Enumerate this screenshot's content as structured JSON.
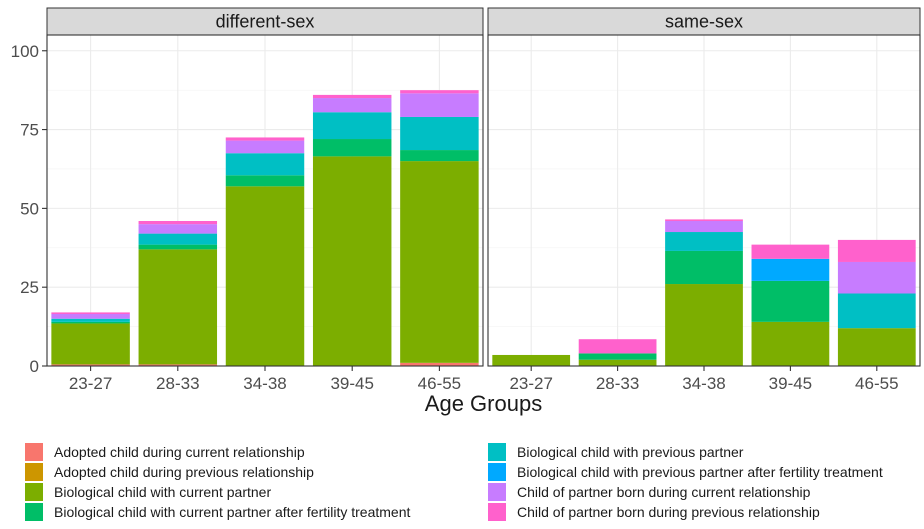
{
  "chart_data": {
    "type": "bar",
    "stacked": true,
    "facets": [
      "different-sex",
      "same-sex"
    ],
    "categories": [
      "23-27",
      "28-33",
      "34-38",
      "39-45",
      "46-55"
    ],
    "xlabel": "Age Groups",
    "ylabel": "",
    "ylim": [
      0,
      105
    ],
    "yticks": [
      0,
      25,
      50,
      75,
      100
    ],
    "grid": true,
    "legend_position": "bottom",
    "series": [
      {
        "name": "Adopted child during current relationship",
        "color": "#F8766D",
        "values": {
          "different-sex": [
            0.5,
            0.5,
            0,
            0,
            1
          ],
          "same-sex": [
            0,
            0,
            0,
            0,
            0
          ]
        }
      },
      {
        "name": "Adopted child during previous relationship",
        "color": "#CD9600",
        "values": {
          "different-sex": [
            0,
            0,
            0,
            0,
            0
          ],
          "same-sex": [
            0,
            0,
            0,
            0,
            0
          ]
        }
      },
      {
        "name": "Biological child with current partner",
        "color": "#7CAE00",
        "values": {
          "different-sex": [
            13,
            36.5,
            57,
            66.5,
            64
          ],
          "same-sex": [
            3.5,
            2,
            26,
            14,
            12
          ]
        }
      },
      {
        "name": "Biological child with current partner after fertility treatment",
        "color": "#00BE67",
        "values": {
          "different-sex": [
            0.5,
            1.5,
            3.5,
            5.5,
            3.5
          ],
          "same-sex": [
            0,
            2,
            10.5,
            13,
            0
          ]
        }
      },
      {
        "name": "Biological child with previous partner",
        "color": "#00BFC4",
        "values": {
          "different-sex": [
            1,
            3.5,
            7,
            8.5,
            10.5
          ],
          "same-sex": [
            0,
            0,
            6,
            0,
            11
          ]
        }
      },
      {
        "name": "Biological child with previous partner after fertility treatment",
        "color": "#00A9FF",
        "values": {
          "different-sex": [
            0,
            0,
            0,
            0,
            0
          ],
          "same-sex": [
            0,
            0,
            0,
            7,
            0
          ]
        }
      },
      {
        "name": "Child of partner born during current relationship",
        "color": "#C77CFF",
        "values": {
          "different-sex": [
            1.5,
            3,
            4,
            4.5,
            7.5
          ],
          "same-sex": [
            0,
            0,
            3.5,
            0,
            10
          ]
        }
      },
      {
        "name": "Child of partner born during previous relationship",
        "color": "#FF61CC",
        "values": {
          "different-sex": [
            0.5,
            1,
            1,
            1,
            1
          ],
          "same-sex": [
            0,
            4.5,
            0.5,
            4.5,
            7
          ]
        }
      }
    ]
  }
}
